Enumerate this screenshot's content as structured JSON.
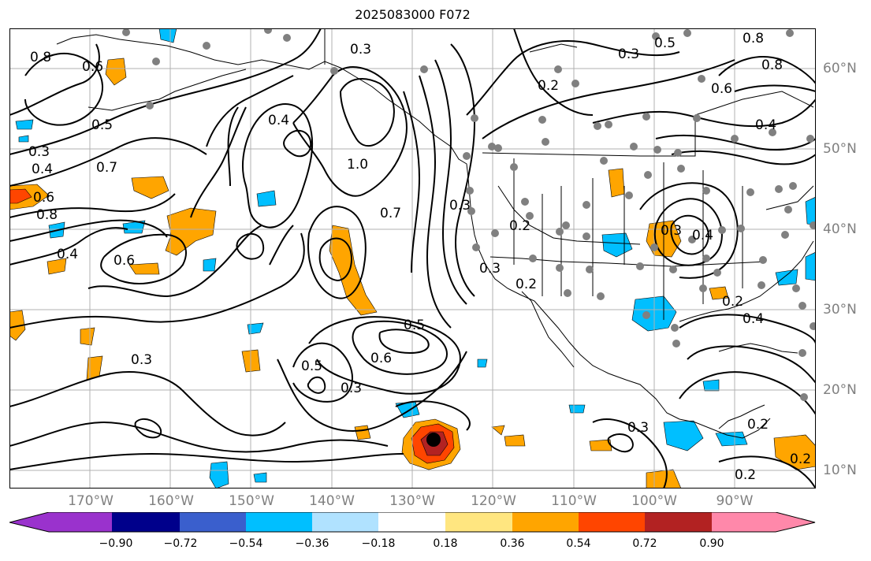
{
  "title": "2025083000 F072",
  "lon_labels": [
    "170°W",
    "160°W",
    "150°W",
    "140°W",
    "130°W",
    "120°W",
    "110°W",
    "100°W",
    "90°W"
  ],
  "lat_labels": [
    "60°N",
    "50°N",
    "40°N",
    "30°N",
    "20°N",
    "10°N"
  ],
  "colorbar": {
    "ticks": [
      "−0.90",
      "−0.72",
      "−0.54",
      "−0.36",
      "−0.18",
      "0.18",
      "0.36",
      "0.54",
      "0.72",
      "0.90"
    ],
    "colors": [
      "#9a32cd",
      "#00008b",
      "#3a5fcd",
      "#00bfff",
      "#b0e2ff",
      "#ffffff",
      "#ffe680",
      "#ffa500",
      "#ff4500",
      "#b22222",
      "#ff88aa"
    ]
  },
  "contour_labels": [
    "0.3",
    "0.5",
    "0.8",
    "0.8",
    "0.8",
    "0.6",
    "0.5",
    "0.3",
    "0.4",
    "0.6",
    "0.8",
    "0.7",
    "0.4",
    "1.0",
    "0.4",
    "0.6",
    "0.2",
    "0.6",
    "0.4",
    "0.3",
    "0.7",
    "0.3",
    "0.2",
    "0.3",
    "0.4",
    "0.2",
    "0.2",
    "0.4",
    "0.3",
    "0.5",
    "0.6",
    "0.5",
    "0.3",
    "0.3",
    "0.2",
    "0.2",
    "0.2",
    "0.3"
  ],
  "colors": {
    "contour": "#000000",
    "grid": "#b0b0b0",
    "coast": "#000000",
    "station": "#808080"
  }
}
